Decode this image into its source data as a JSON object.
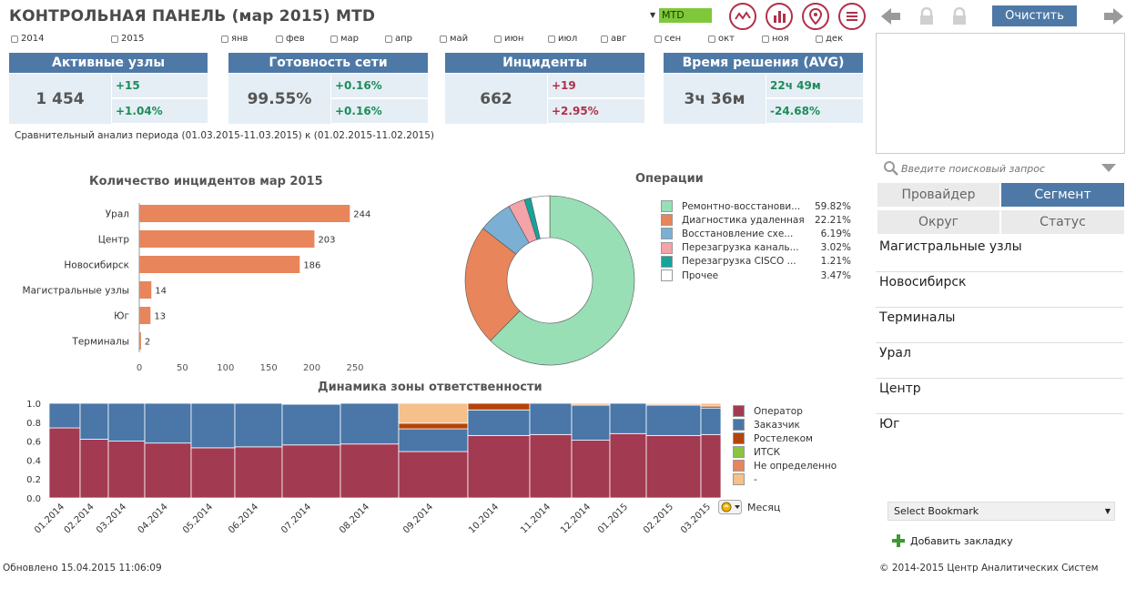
{
  "header": {
    "title": "КОНТРОЛЬНАЯ ПАНЕЛЬ (мар 2015) MTD",
    "period": "MTD",
    "clear_label": "Очистить",
    "tool_icons": [
      "line-chart-icon",
      "bar-chart-icon",
      "map-pin-icon",
      "menu-icon"
    ]
  },
  "filters": {
    "years": [
      "2014",
      "2015"
    ],
    "months": [
      "янв",
      "фев",
      "мар",
      "апр",
      "май",
      "июн",
      "июл",
      "авг",
      "сен",
      "окт",
      "ноя",
      "дек"
    ]
  },
  "kpis": [
    {
      "title": "Активные узлы",
      "value": "1 454",
      "delta_abs": "+15",
      "delta_pct": "+1.04%"
    },
    {
      "title": "Готовность сети",
      "value": "99.55%",
      "delta_abs": "+0.16%",
      "delta_pct": "+0.16%"
    },
    {
      "title": "Инциденты",
      "value": "662",
      "delta_abs": "+19",
      "delta_pct": "+2.95%"
    },
    {
      "title": "Время решения (AVG)",
      "value": "3ч 36м",
      "delta_abs": "22ч 49м",
      "delta_pct": "-24.68%"
    }
  ],
  "compare_note": "Сравнительный анализ периода (01.03.2015-11.03.2015) к (01.02.2015-11.02.2015)",
  "colors": {
    "accent": "#4e79a7",
    "bar": "#e8855a",
    "positive": "#1e8c5a",
    "negative": "#b0304a"
  },
  "chart_data": [
    {
      "type": "bar",
      "title": "Количество инцидентов мар 2015",
      "orientation": "horizontal",
      "categories": [
        "Урал",
        "Центр",
        "Новосибирск",
        "Магистральные узлы",
        "Юг",
        "Терминалы"
      ],
      "values": [
        244,
        203,
        186,
        14,
        13,
        2
      ],
      "xlim": [
        0,
        250
      ],
      "xticks": [
        "0",
        "50",
        "100",
        "150",
        "200",
        "250"
      ]
    },
    {
      "type": "pie",
      "title": "Операции",
      "donut": true,
      "labels": [
        "Ремонтно-восстанови...",
        "Диагностика удаленная",
        "Восстановление схе...",
        "Перезагрузка каналь...",
        "Перезагрузка CISCO ...",
        "Прочее"
      ],
      "values": [
        59.82,
        22.21,
        6.19,
        3.02,
        1.21,
        3.47
      ],
      "value_labels": [
        "59.82%",
        "22.21%",
        "6.19%",
        "3.02%",
        "1.21%",
        "3.47%"
      ],
      "colors": [
        "#98dfb6",
        "#e8855a",
        "#7bafd4",
        "#f4a3a8",
        "#16a39b",
        "#ffffff"
      ]
    },
    {
      "type": "bar",
      "stacked": true,
      "title": "Динамика зоны ответственности",
      "x": [
        "01.2014",
        "02.2014",
        "03.2014",
        "04.2014",
        "05.2014",
        "06.2014",
        "07.2014",
        "08.2014",
        "09.2014",
        "10.2014",
        "11.2014",
        "12.2014",
        "01.2015",
        "02.2015",
        "03.2015"
      ],
      "ylim": [
        0,
        1
      ],
      "yticks": [
        "0.0",
        "0.2",
        "0.4",
        "0.6",
        "0.8",
        "1.0"
      ],
      "series": [
        {
          "name": "Оператор",
          "color": "#a23a52",
          "values": [
            0.74,
            0.62,
            0.6,
            0.58,
            0.53,
            0.54,
            0.56,
            0.57,
            0.49,
            0.66,
            0.67,
            0.61,
            0.68,
            0.66,
            0.67
          ]
        },
        {
          "name": "Заказчик",
          "color": "#4a76a8",
          "values": [
            0.26,
            0.38,
            0.4,
            0.42,
            0.47,
            0.46,
            0.43,
            0.43,
            0.24,
            0.27,
            0.33,
            0.37,
            0.32,
            0.32,
            0.28
          ]
        },
        {
          "name": "Ростелеком",
          "color": "#b5440a",
          "values": [
            0,
            0,
            0,
            0,
            0,
            0,
            0.005,
            0,
            0.06,
            0.07,
            0,
            0,
            0,
            0.01,
            0.02
          ]
        },
        {
          "name": "ИТСК",
          "color": "#8bc53f",
          "values": [
            0,
            0,
            0,
            0,
            0,
            0,
            0,
            0,
            0,
            0,
            0,
            0,
            0,
            0,
            0
          ]
        },
        {
          "name": "Не определенно",
          "color": "#e8855a",
          "values": [
            0,
            0,
            0,
            0,
            0,
            0,
            0,
            0,
            0,
            0,
            0,
            0,
            0,
            0,
            0
          ]
        },
        {
          "name": "-",
          "color": "#f5c08a",
          "values": [
            0,
            0,
            0,
            0,
            0,
            0,
            0.005,
            0,
            0.21,
            0,
            0,
            0.02,
            0,
            0.01,
            0.03
          ]
        }
      ],
      "widths": [
        34,
        31,
        40,
        51,
        48,
        52,
        64,
        64,
        76,
        68,
        46,
        42,
        40,
        60,
        22
      ],
      "xlabel_control": "Месяц"
    }
  ],
  "sidebar": {
    "search_placeholder": "Введите поисковый запрос",
    "tabs": [
      {
        "label": "Провайдер",
        "active": false
      },
      {
        "label": "Сегмент",
        "active": true
      },
      {
        "label": "Округ",
        "active": false
      },
      {
        "label": "Статус",
        "active": false
      }
    ],
    "items": [
      "Магистральные узлы",
      "Новосибирск",
      "Терминалы",
      "Урал",
      "Центр",
      "Юг"
    ],
    "bookmark_select": "Select Bookmark",
    "add_bookmark": "Добавить закладку"
  },
  "footer": {
    "updated": "Обновлено 15.04.2015 11:06:09",
    "copyright": "© 2014-2015 Центр Аналитических Систем"
  }
}
